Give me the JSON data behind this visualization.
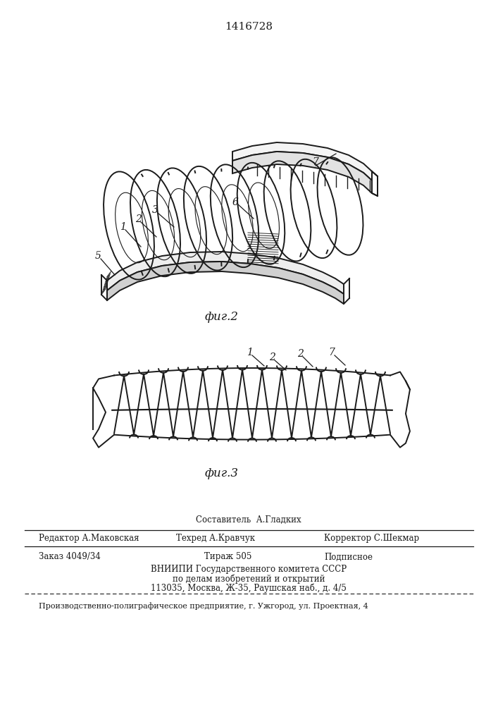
{
  "patent_number": "1416728",
  "fig2_caption": "фиг.2",
  "fig3_caption": "фиг.3",
  "line_color": "#1a1a1a",
  "line_width": 1.4,
  "footer": {
    "line1_center": "Составитель  А.Гладких",
    "line2_left": "Редактор А.Маковская",
    "line2_mid": "Техред А.Кравчук",
    "line2_right": "Корректор С.Шекмар",
    "line3_left": "Заказ 4049/34",
    "line3_mid": "Тираж 505",
    "line3_right": "Подписное",
    "line4": "ВНИИПИ Государственного комитета СССР",
    "line5": "по делам изобретений и открытий",
    "line6": "113035, Москва, Ж-35, Раушская наб., д. 4/5",
    "line7": "Производственно-полиграфическое предприятие, г. Ужгород, ул. Проектная, 4"
  }
}
